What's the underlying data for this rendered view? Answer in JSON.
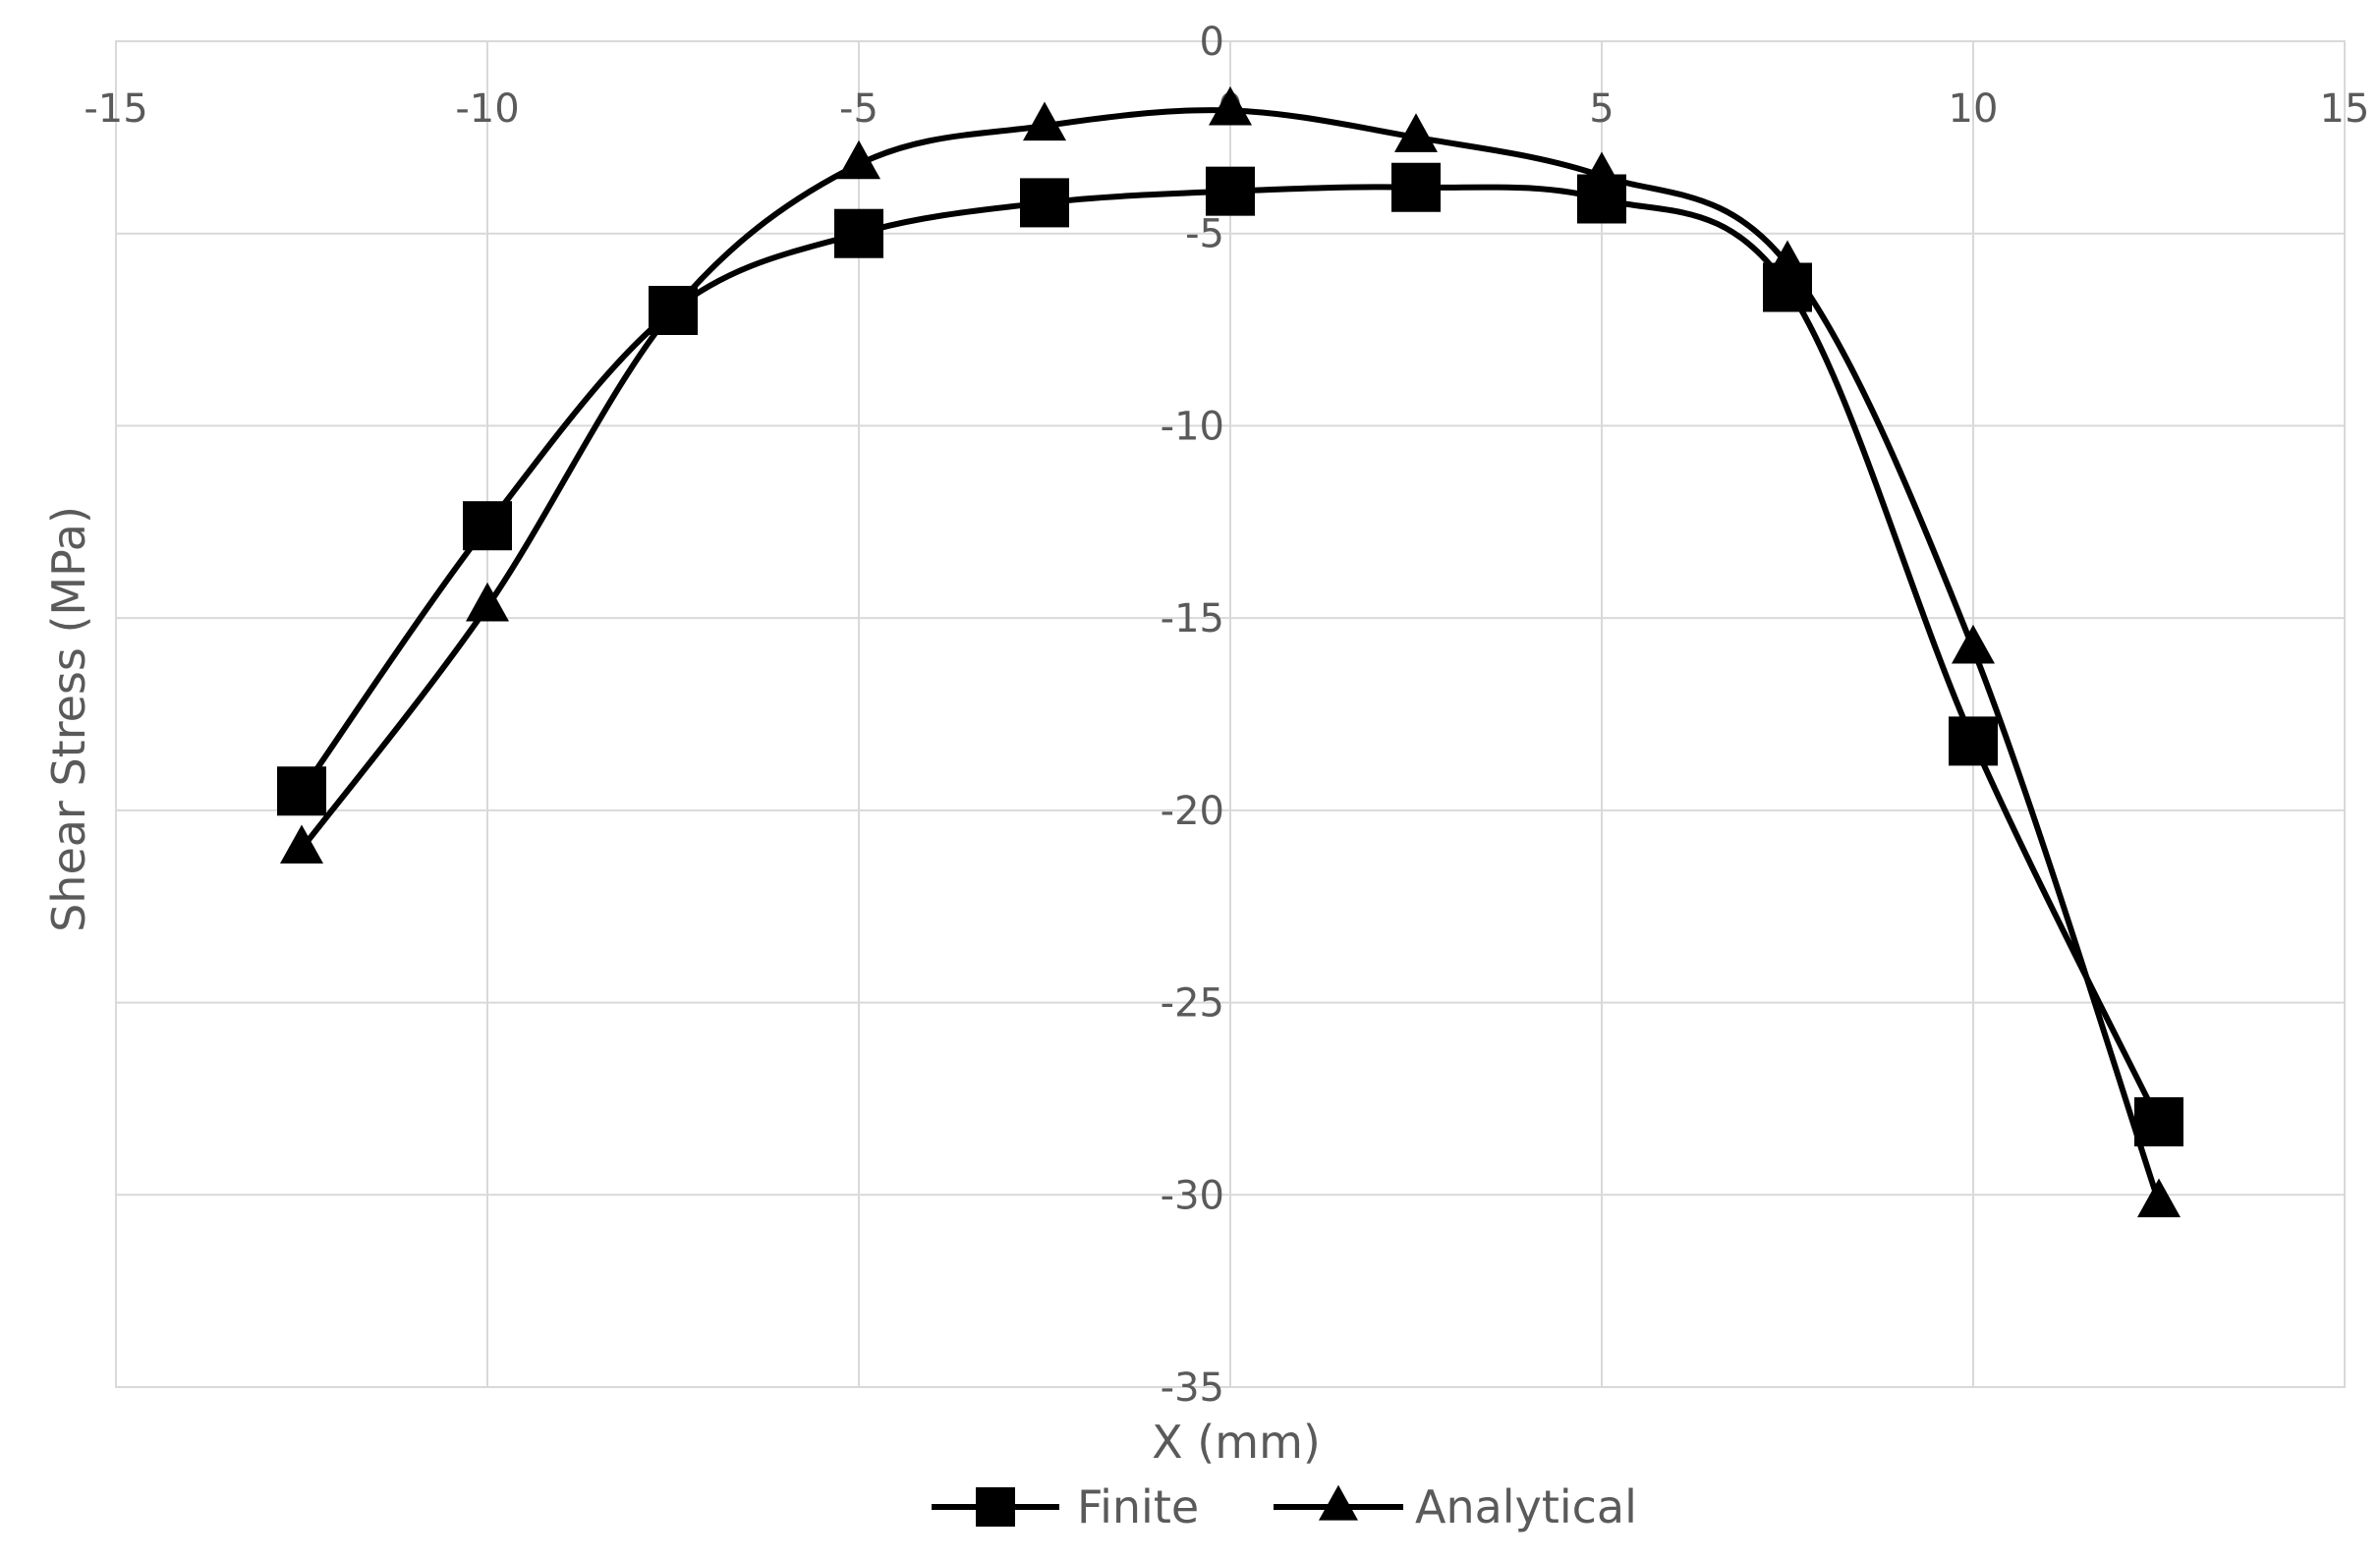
{
  "chart_data": {
    "type": "scatter",
    "title": "",
    "xlabel": "X (mm)",
    "ylabel": "Shear Stress (MPa)",
    "xlim": [
      -15,
      15
    ],
    "ylim": [
      -35,
      0
    ],
    "xticks": [
      -15,
      -10,
      -5,
      0,
      5,
      10,
      15
    ],
    "yticks": [
      0,
      -5,
      -10,
      -15,
      -20,
      -25,
      -30,
      -35
    ],
    "x_tick_labels": [
      "-15",
      "-10",
      "-5",
      "0",
      "5",
      "10",
      "15"
    ],
    "y_tick_labels": [
      "0",
      "-5",
      "-10",
      "-15",
      "-20",
      "-25",
      "-30",
      "-35"
    ],
    "grid": true,
    "legend_position": "bottom",
    "series": [
      {
        "name": "Finite",
        "marker": "square",
        "color": "#000000",
        "x": [
          -12.5,
          -10,
          -7.5,
          -5,
          -2.5,
          0,
          2.5,
          5,
          7.5,
          10,
          12.5
        ],
        "y": [
          -19.5,
          -12.6,
          -7.0,
          -5.0,
          -4.2,
          -3.9,
          -3.8,
          -4.1,
          -6.4,
          -18.2,
          -28.1
        ]
      },
      {
        "name": "Analytical",
        "marker": "triangle",
        "color": "#000000",
        "x": [
          -12.5,
          -10,
          -7.5,
          -5,
          -2.5,
          0,
          2.5,
          5,
          7.5,
          10,
          12.5
        ],
        "y": [
          -21.0,
          -14.7,
          -7.0,
          -3.2,
          -2.2,
          -1.8,
          -2.5,
          -3.5,
          -5.8,
          -15.8,
          -30.2
        ]
      }
    ]
  }
}
